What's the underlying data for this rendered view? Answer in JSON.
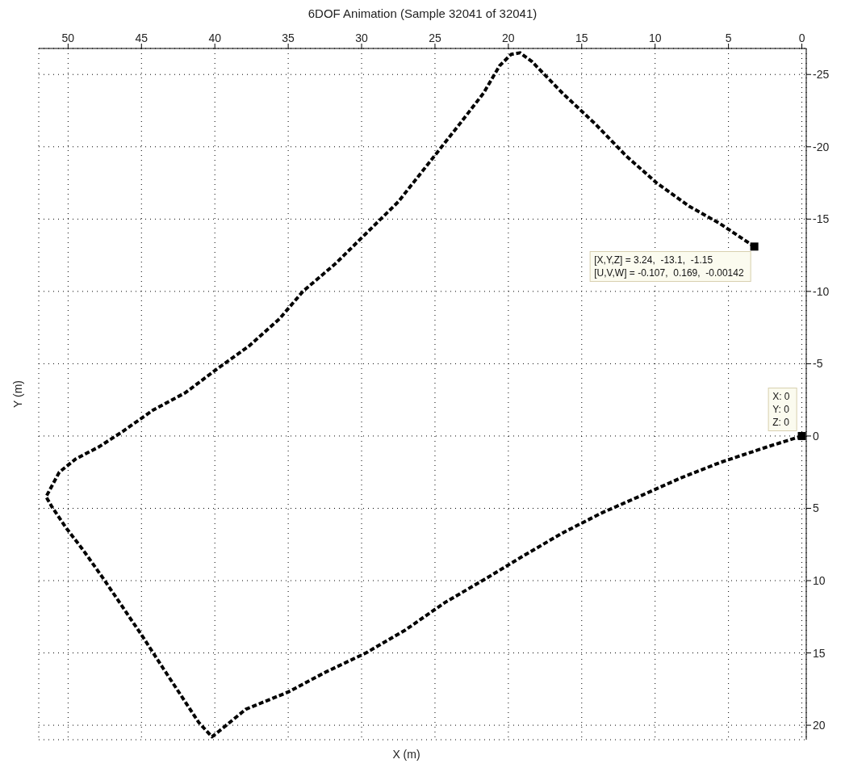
{
  "chart_data": {
    "type": "line",
    "title": "6DOF Animation (Sample 32041 of 32041)",
    "xlabel": "X (m)",
    "ylabel": "Y (m)",
    "xlim": [
      52,
      -0.3
    ],
    "ylim": [
      21,
      -26.8
    ],
    "xticks": [
      50,
      45,
      40,
      35,
      30,
      25,
      20,
      15,
      10,
      5,
      0
    ],
    "yticks": [
      -25,
      -20,
      -15,
      -10,
      -5,
      0,
      5,
      10,
      15,
      20
    ],
    "grid": true,
    "series": [
      {
        "color": "#000000",
        "line_style": "dashed",
        "marker": "none",
        "x": [
          0,
          2.36,
          5.57,
          8.25,
          10.9,
          13.6,
          16.3,
          19.0,
          21.6,
          24.3,
          27.0,
          29.7,
          32.4,
          35.0,
          37.9,
          39.7,
          40.2,
          41.1,
          42.2,
          43.5,
          44.9,
          46.1,
          47.5,
          49.0,
          50.1,
          51.1,
          51.5,
          50.6,
          49.5,
          47.9,
          46.3,
          44.2,
          42.0,
          39.9,
          37.7,
          35.6,
          34.0,
          31.8,
          29.7,
          27.5,
          25.4,
          23.3,
          21.7,
          20.6,
          19.8,
          19.2,
          18.4,
          16.3,
          14.1,
          12.0,
          9.9,
          7.7,
          5.6,
          3.24
        ],
        "values": [
          0,
          0.75,
          1.83,
          2.9,
          4.1,
          5.3,
          6.7,
          8.3,
          9.9,
          11.5,
          13.4,
          15.0,
          16.3,
          17.7,
          18.9,
          20.4,
          20.8,
          19.8,
          18.1,
          16.1,
          13.9,
          12.1,
          10.0,
          7.85,
          6.4,
          4.9,
          4.2,
          2.5,
          1.6,
          0.75,
          -0.3,
          -1.8,
          -3.0,
          -4.6,
          -6.2,
          -8.1,
          -10.0,
          -11.9,
          -14.0,
          -16.2,
          -18.9,
          -21.6,
          -23.7,
          -25.6,
          -26.4,
          -26.5,
          -25.9,
          -23.7,
          -21.6,
          -19.4,
          -17.5,
          -15.9,
          -14.7,
          -13.1
        ]
      },
      {
        "type": "scatter",
        "color": "#000000",
        "marker": "square",
        "x": [
          3.24,
          0
        ],
        "values": [
          -13.1,
          0
        ]
      }
    ],
    "annotations": [
      {
        "text": "[X,Y,Z] = 3.24,  -13.1,  -1.15\n[U,V,W] = -0.107,  0.169,  -0.00142",
        "x": 3.24,
        "y": -13.1
      },
      {
        "text": "X: 0\nY: 0\nZ: 0",
        "x": 0,
        "y": 0
      }
    ]
  }
}
